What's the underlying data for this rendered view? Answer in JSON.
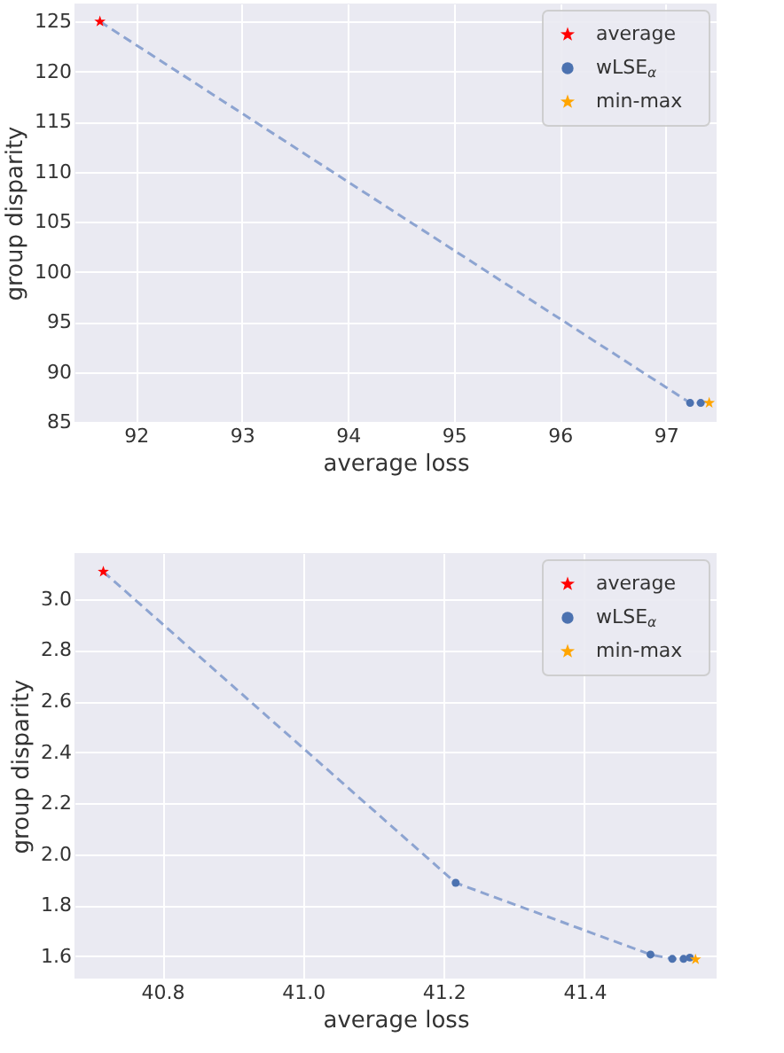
{
  "chart_data": [
    {
      "type": "scatter",
      "xlabel": "average loss",
      "ylabel": "group disparity",
      "xlim": [
        91.42,
        97.48
      ],
      "ylim": [
        85,
        126.8
      ],
      "xticks": [
        92,
        93,
        94,
        95,
        96,
        97
      ],
      "yticks": [
        85,
        90,
        95,
        100,
        105,
        110,
        115,
        120,
        125
      ],
      "grid": true,
      "legend": "top right",
      "series": [
        {
          "type": "line",
          "line_style": "dashed",
          "marker": "none",
          "color": "#8da4d1",
          "x": [
            91.66,
            97.23,
            97.33,
            97.37,
            97.4,
            97.41
          ],
          "values": [
            125,
            86.9,
            86.9,
            87,
            87,
            86.9
          ]
        },
        {
          "name": "average",
          "marker": "star",
          "color": "#ff0000",
          "x": [
            91.66
          ],
          "values": [
            125
          ]
        },
        {
          "name": "wLSE$_{α}$",
          "marker": "circle",
          "color": "#4c72b0",
          "x": [
            97.23,
            97.33
          ],
          "values": [
            86.9,
            86.9
          ]
        },
        {
          "name": "min-max",
          "marker": "star",
          "color": "#ffa500",
          "x": [
            97.41
          ],
          "values": [
            86.9
          ]
        }
      ]
    },
    {
      "type": "scatter",
      "xlabel": "average loss",
      "ylabel": "group disparity",
      "xlim": [
        40.675,
        41.588
      ],
      "ylim": [
        1.513,
        3.18
      ],
      "xticks": [
        {
          "value": 40.8,
          "label": "40.8"
        },
        {
          "value": 41.0,
          "label": "41.0"
        },
        {
          "value": 41.2,
          "label": "41.2"
        },
        {
          "value": 41.4,
          "label": "41.4"
        }
      ],
      "yticks": [
        1.6,
        1.8,
        {
          "value": 2.0,
          "label": "2.0"
        },
        2.2,
        2.4,
        2.6,
        2.8,
        {
          "value": 3.0,
          "label": "3.0"
        }
      ],
      "grid": true,
      "legend": "top right",
      "series": [
        {
          "type": "line",
          "line_style": "dashed",
          "marker": "none",
          "color": "#8da4d1",
          "x": [
            40.716,
            41.217,
            41.494,
            41.525,
            41.541,
            41.547,
            41.55,
            41.558
          ],
          "values": [
            3.107,
            1.888,
            1.607,
            1.59,
            1.59,
            1.59,
            1.595,
            1.588
          ]
        },
        {
          "name": "average",
          "marker": "star",
          "color": "#ff0000",
          "x": [
            40.716
          ],
          "values": [
            3.107
          ]
        },
        {
          "name": "wLSE$_{α}$",
          "marker": "circle",
          "color": "#4c72b0",
          "x": [
            41.217,
            41.494,
            41.525,
            41.541,
            41.547,
            41.55
          ],
          "values": [
            1.888,
            1.607,
            1.59,
            1.59,
            null,
            1.595
          ]
        },
        {
          "name": "min-max",
          "marker": "star",
          "color": "#ffa500",
          "x": [
            41.558
          ],
          "values": [
            1.588
          ]
        }
      ]
    }
  ]
}
